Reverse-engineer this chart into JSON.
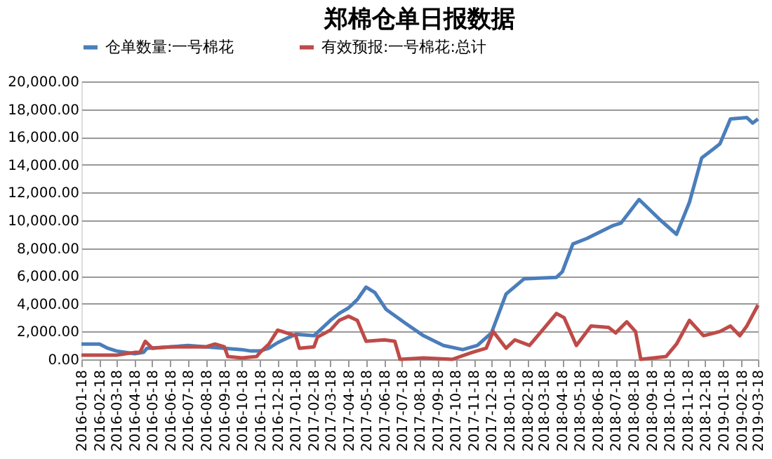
{
  "chart_data": {
    "type": "line",
    "title": "郑棉仓单日报数据",
    "xlim": [
      "2016-01-18",
      "2019-03-18"
    ],
    "xticks": [
      "2016-01-18",
      "2016-02-18",
      "2016-03-18",
      "2016-04-18",
      "2016-05-18",
      "2016-06-18",
      "2016-07-18",
      "2016-08-18",
      "2016-09-18",
      "2016-10-18",
      "2016-11-18",
      "2016-12-18",
      "2017-01-18",
      "2017-02-18",
      "2017-03-18",
      "2017-04-18",
      "2017-05-18",
      "2017-06-18",
      "2017-07-18",
      "2017-08-18",
      "2017-09-18",
      "2017-10-18",
      "2017-11-18",
      "2017-12-18",
      "2018-01-18",
      "2018-02-18",
      "2018-03-18",
      "2018-04-18",
      "2018-05-18",
      "2018-06-18",
      "2018-07-18",
      "2018-08-18",
      "2018-09-18",
      "2018-10-18",
      "2018-11-18",
      "2018-12-18",
      "2019-01-18",
      "2019-02-18",
      "2019-03-18"
    ],
    "ylim": [
      0,
      20000
    ],
    "yticks": [
      {
        "value": 0,
        "label": "0.00"
      },
      {
        "value": 2000,
        "label": "2,000.00"
      },
      {
        "value": 4000,
        "label": "4,000.00"
      },
      {
        "value": 6000,
        "label": "6,000.00"
      },
      {
        "value": 8000,
        "label": "8,000.00"
      },
      {
        "value": 10000,
        "label": "10,000.00"
      },
      {
        "value": 12000,
        "label": "12,000.00"
      },
      {
        "value": 14000,
        "label": "14,000.00"
      },
      {
        "value": 16000,
        "label": "16,000.00"
      },
      {
        "value": 18000,
        "label": "18,000.00"
      },
      {
        "value": 20000,
        "label": "20,000.00"
      }
    ],
    "grid": "y",
    "legend": "top",
    "marker": "none",
    "line_style": "solid",
    "series": [
      {
        "name": "仓单数量:一号棉花",
        "color": "#4a7ebb",
        "x": [
          "2016-01-18",
          "2016-02-18",
          "2016-03-03",
          "2016-03-18",
          "2016-04-18",
          "2016-05-03",
          "2016-05-09",
          "2016-06-18",
          "2016-07-18",
          "2016-08-18",
          "2016-09-18",
          "2016-10-18",
          "2016-11-02",
          "2016-11-18",
          "2016-12-03",
          "2016-12-18",
          "2017-01-02",
          "2017-01-18",
          "2017-02-18",
          "2017-03-18",
          "2017-04-02",
          "2017-04-18",
          "2017-05-03",
          "2017-05-18",
          "2017-06-02",
          "2017-06-21",
          "2017-07-24",
          "2017-08-24",
          "2017-09-27",
          "2017-10-30",
          "2017-11-24",
          "2017-12-18",
          "2018-01-12",
          "2018-02-12",
          "2018-04-08",
          "2018-04-18",
          "2018-05-06",
          "2018-05-30",
          "2018-07-12",
          "2018-07-27",
          "2018-08-27",
          "2018-10-03",
          "2018-10-30",
          "2018-11-21",
          "2018-12-12",
          "2019-01-12",
          "2019-01-30",
          "2019-02-27",
          "2019-03-09",
          "2019-03-18"
        ],
        "values": [
          1100,
          1100,
          800,
          600,
          400,
          500,
          800,
          900,
          1000,
          900,
          800,
          700,
          600,
          600,
          800,
          1200,
          1500,
          1800,
          1700,
          2800,
          3300,
          3700,
          4300,
          5200,
          4800,
          3600,
          2600,
          1700,
          1000,
          700,
          1000,
          1900,
          4700,
          5800,
          5900,
          6300,
          8300,
          8700,
          9600,
          9800,
          11500,
          10000,
          9000,
          11300,
          14500,
          15500,
          17300,
          17400,
          17000,
          17300
        ]
      },
      {
        "name": "有效预报:一号棉花:总计",
        "color": "#be4b48",
        "x": [
          "2016-01-18",
          "2016-03-18",
          "2016-04-18",
          "2016-04-27",
          "2016-05-06",
          "2016-05-18",
          "2016-06-18",
          "2016-07-18",
          "2016-08-18",
          "2016-09-02",
          "2016-09-18",
          "2016-09-24",
          "2016-10-18",
          "2016-11-12",
          "2016-11-18",
          "2016-12-03",
          "2016-12-18",
          "2017-01-18",
          "2017-01-24",
          "2017-02-18",
          "2017-02-24",
          "2017-03-18",
          "2017-04-02",
          "2017-04-18",
          "2017-05-03",
          "2017-05-18",
          "2017-06-18",
          "2017-07-06",
          "2017-07-15",
          "2017-08-24",
          "2017-10-12",
          "2017-11-15",
          "2017-12-09",
          "2017-12-21",
          "2018-01-12",
          "2018-01-27",
          "2018-02-21",
          "2018-04-08",
          "2018-04-21",
          "2018-05-12",
          "2018-06-06",
          "2018-07-06",
          "2018-07-18",
          "2018-08-06",
          "2018-08-21",
          "2018-08-30",
          "2018-10-12",
          "2018-10-30",
          "2018-11-21",
          "2018-12-15",
          "2019-01-12",
          "2019-01-30",
          "2019-02-15",
          "2019-02-27",
          "2019-03-18"
        ],
        "values": [
          300,
          300,
          500,
          500,
          1300,
          800,
          900,
          900,
          900,
          1100,
          900,
          200,
          100,
          200,
          500,
          1100,
          2100,
          1700,
          800,
          900,
          1600,
          2100,
          2800,
          3100,
          2800,
          1300,
          1400,
          1300,
          0,
          100,
          0,
          500,
          800,
          2000,
          800,
          1400,
          1000,
          3300,
          3000,
          1000,
          2400,
          2300,
          1900,
          2700,
          2000,
          0,
          200,
          1100,
          2800,
          1700,
          2000,
          2400,
          1700,
          2400,
          3900
        ]
      }
    ]
  }
}
